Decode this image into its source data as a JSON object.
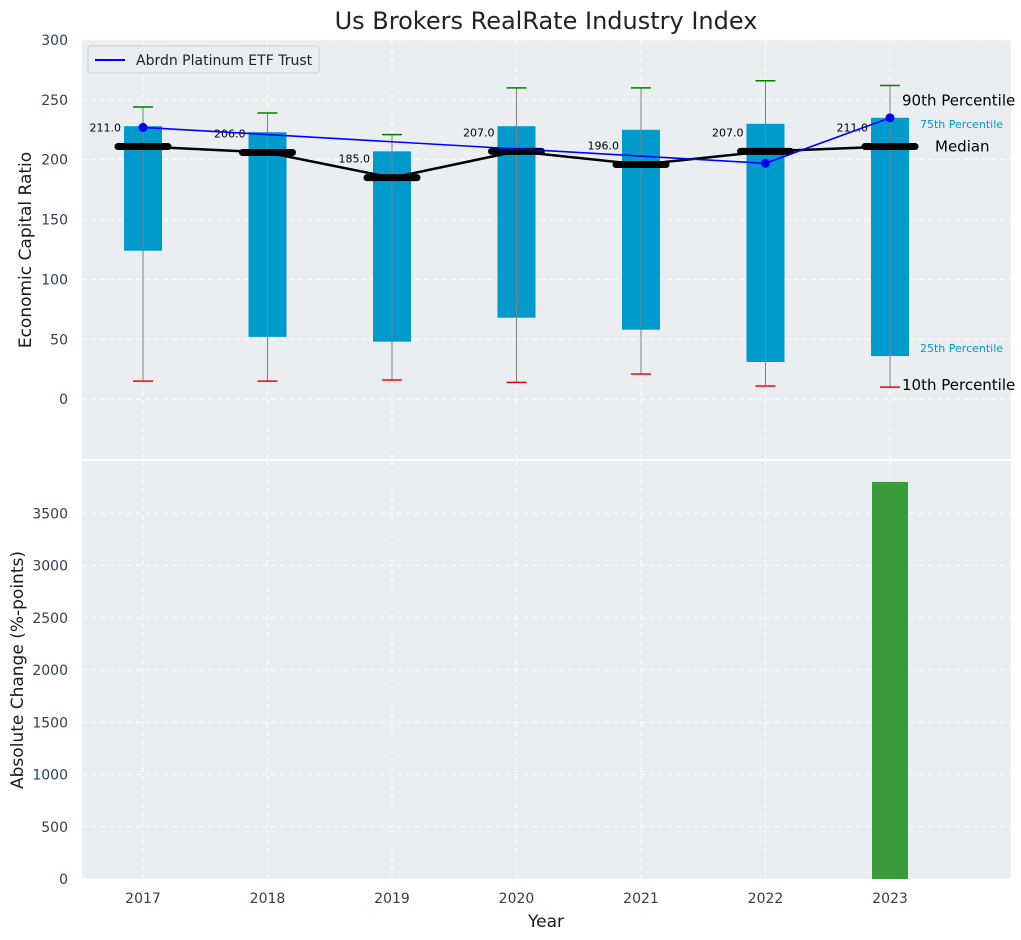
{
  "chart_data": [
    {
      "type": "box",
      "title": "Us Brokers RealRate Industry Index",
      "ylabel": "Economic Capital Ratio",
      "xlabel": "",
      "categories": [
        "2017",
        "2018",
        "2019",
        "2020",
        "2021",
        "2022",
        "2023"
      ],
      "ylim": [
        -50,
        300
      ],
      "yticks": [
        0,
        50,
        100,
        150,
        200,
        250,
        300
      ],
      "grid": true,
      "legend": {
        "position": "top-left",
        "entries": [
          "Abrdn Platinum ETF Trust"
        ]
      },
      "percentiles": {
        "p10": [
          15,
          15,
          16,
          14,
          21,
          11,
          10
        ],
        "p25": [
          124,
          52,
          48,
          68,
          58,
          31,
          36
        ],
        "median": [
          211.0,
          206.0,
          185.0,
          207.0,
          196.0,
          207.0,
          211.0
        ],
        "p75": [
          228,
          223,
          207,
          228,
          225,
          230,
          235
        ],
        "p90": [
          244,
          239,
          221,
          260,
          260,
          266,
          262
        ]
      },
      "median_labels": [
        "211.0",
        "206.0",
        "185.0",
        "207.0",
        "196.0",
        "207.0",
        "211.0"
      ],
      "series": [
        {
          "name": "Abrdn Platinum ETF Trust",
          "values": [
            227,
            null,
            null,
            null,
            null,
            197,
            235
          ],
          "color": "#0000ff"
        }
      ],
      "annotations": {
        "p90": "90th Percentile",
        "p75": "75th Percentile",
        "median": "Median",
        "p25": "25th Percentile",
        "p10": "10th Percentile"
      },
      "colors": {
        "box": "#009bcc",
        "median": "#000000",
        "p90_cap": "#008000",
        "p10_cap": "#ff0000",
        "whisker": "#808080",
        "background": "#eaeef0"
      }
    },
    {
      "type": "bar",
      "title": "",
      "ylabel": "Absolute Change (%-points)",
      "xlabel": "Year",
      "categories": [
        "2017",
        "2018",
        "2019",
        "2020",
        "2021",
        "2022",
        "2023"
      ],
      "values": [
        null,
        null,
        null,
        null,
        null,
        null,
        3800
      ],
      "ylim": [
        0,
        4000
      ],
      "yticks": [
        0,
        500,
        1000,
        1500,
        2000,
        2500,
        3000,
        3500
      ],
      "grid": true,
      "colors": {
        "bar": "#3a9b3a"
      }
    }
  ]
}
